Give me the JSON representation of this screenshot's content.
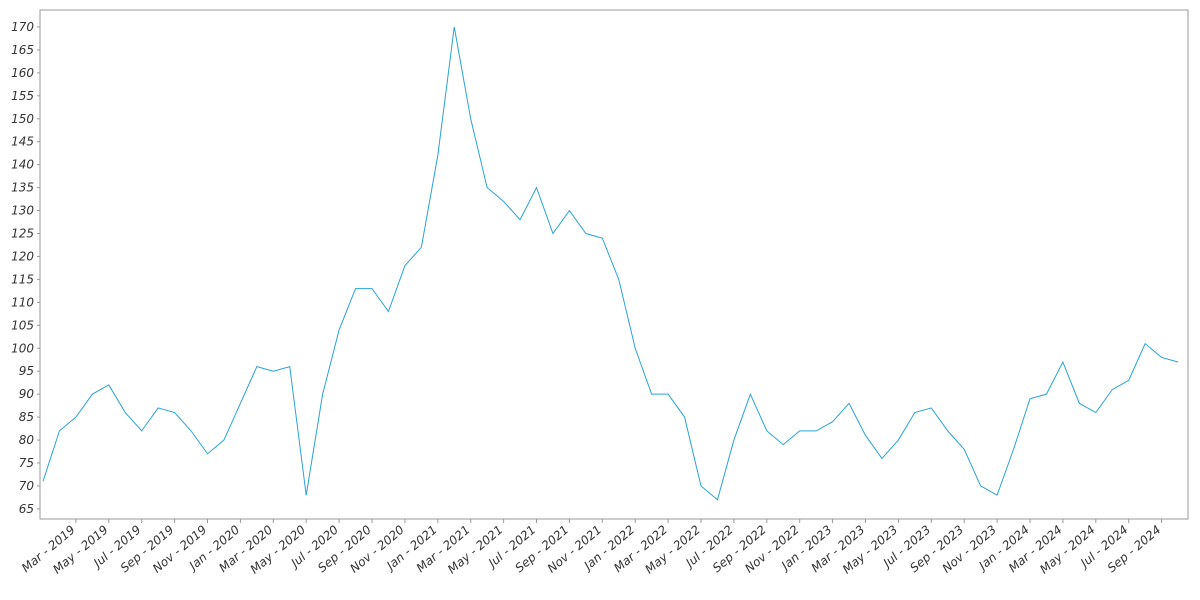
{
  "chart_data": {
    "type": "line",
    "categories": [
      null,
      null,
      "Mar - 2019",
      null,
      "May - 2019",
      null,
      "Jul - 2019",
      null,
      "Sep - 2019",
      null,
      "Nov - 2019",
      null,
      "Jan - 2020",
      null,
      "Mar - 2020",
      null,
      "May - 2020",
      null,
      "Jul - 2020",
      null,
      "Sep - 2020",
      null,
      "Nov - 2020",
      null,
      "Jan - 2021",
      null,
      "Mar - 2021",
      null,
      "May - 2021",
      null,
      "Jul - 2021",
      null,
      "Sep - 2021",
      null,
      "Nov - 2021",
      null,
      "Jan - 2022",
      null,
      "Mar - 2022",
      null,
      "May - 2022",
      null,
      "Jul - 2022",
      null,
      "Sep - 2022",
      null,
      "Nov - 2022",
      null,
      "Jan - 2023",
      null,
      "Mar - 2023",
      null,
      "May - 2023",
      null,
      "Jul - 2023",
      null,
      "Sep - 2023",
      null,
      "Nov - 2023",
      null,
      "Jan - 2024",
      null,
      "Mar - 2024",
      null,
      "May - 2024",
      null,
      "Jul - 2024",
      null,
      "Sep - 2024",
      null
    ],
    "values": [
      71,
      82,
      85,
      90,
      92,
      86,
      82,
      87,
      86,
      82,
      77,
      80,
      88,
      96,
      95,
      96,
      68,
      90,
      104,
      113,
      113,
      108,
      118,
      122,
      142,
      170,
      150,
      135,
      132,
      128,
      135,
      125,
      130,
      125,
      124,
      115,
      100,
      90,
      90,
      85,
      70,
      67,
      80,
      90,
      82,
      79,
      82,
      82,
      84,
      88,
      81,
      76,
      80,
      86,
      87,
      82,
      78,
      70,
      68,
      78,
      89,
      90,
      97,
      88,
      86,
      91,
      93,
      101,
      98,
      97
    ],
    "color": "#29a3d6",
    "ylim": [
      62.8,
      173.7
    ],
    "yticks": [
      65,
      70,
      75,
      80,
      85,
      90,
      95,
      100,
      105,
      110,
      115,
      120,
      125,
      130,
      135,
      140,
      145,
      150,
      155,
      160,
      165,
      170
    ]
  }
}
